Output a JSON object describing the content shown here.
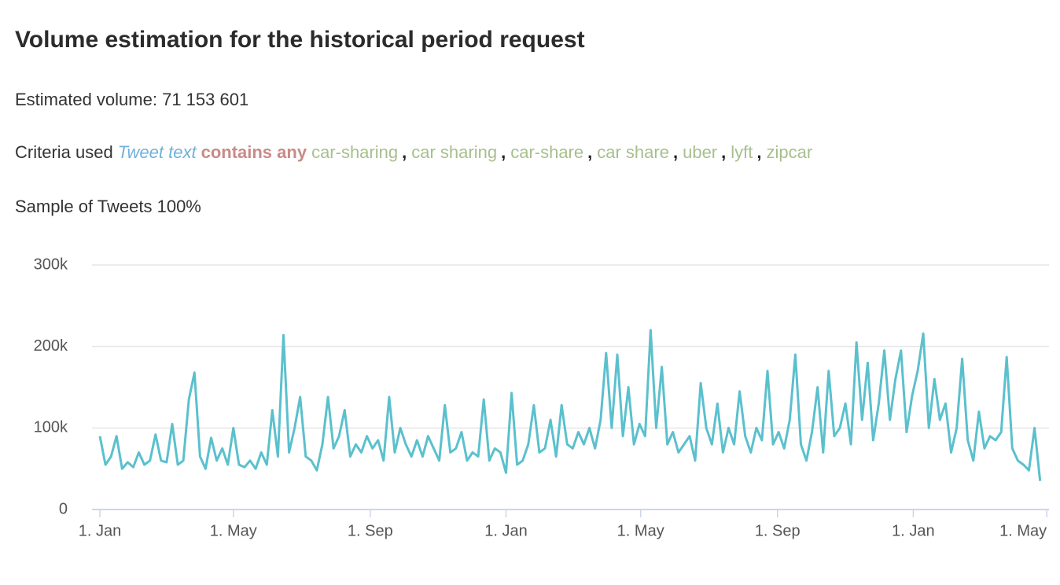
{
  "header": {
    "title": "Volume estimation for the historical period request"
  },
  "volume": {
    "label": "Estimated volume:",
    "value": "71 153 601"
  },
  "criteria": {
    "label": "Criteria used",
    "field": "Tweet text",
    "operator": "contains any",
    "terms": [
      "car-sharing",
      "car sharing",
      "car-share",
      "car share",
      "uber",
      "lyft",
      "zipcar"
    ],
    "separator": ","
  },
  "sample": {
    "label": "Sample of Tweets",
    "value": "100%"
  },
  "chart_data": {
    "type": "line",
    "color": "#5bc0cd",
    "grid": true,
    "xlim": [
      0,
      853
    ],
    "xticks": [
      {
        "value": 0,
        "label": "1. Jan"
      },
      {
        "value": 120,
        "label": "1. May"
      },
      {
        "value": 243,
        "label": "1. Sep"
      },
      {
        "value": 365,
        "label": "1. Jan"
      },
      {
        "value": 486,
        "label": "1. May"
      },
      {
        "value": 609,
        "label": "1. Sep"
      },
      {
        "value": 731,
        "label": "1. Jan"
      },
      {
        "value": 851,
        "label": "1. May"
      }
    ],
    "ylim": [
      0,
      300000
    ],
    "yticks": [
      0,
      {
        "value": 100000,
        "label": "100k"
      },
      {
        "value": 200000,
        "label": "200k"
      },
      {
        "value": 300000,
        "label": "300k"
      }
    ],
    "x": [
      0,
      5,
      10,
      15,
      20,
      25,
      30,
      35,
      40,
      45,
      50,
      55,
      60,
      65,
      70,
      75,
      80,
      85,
      90,
      95,
      100,
      105,
      110,
      115,
      120,
      125,
      130,
      135,
      140,
      145,
      150,
      155,
      160,
      165,
      170,
      175,
      180,
      185,
      190,
      195,
      200,
      205,
      210,
      215,
      220,
      225,
      230,
      235,
      240,
      245,
      250,
      255,
      260,
      265,
      270,
      275,
      280,
      285,
      290,
      295,
      300,
      305,
      310,
      315,
      320,
      325,
      330,
      335,
      340,
      345,
      350,
      355,
      360,
      365,
      370,
      375,
      380,
      385,
      390,
      395,
      400,
      405,
      410,
      415,
      420,
      425,
      430,
      435,
      440,
      445,
      450,
      455,
      460,
      465,
      470,
      475,
      480,
      485,
      490,
      495,
      500,
      505,
      510,
      515,
      520,
      525,
      530,
      535,
      540,
      545,
      550,
      555,
      560,
      565,
      570,
      575,
      580,
      585,
      590,
      595,
      600,
      605,
      610,
      615,
      620,
      625,
      630,
      635,
      640,
      645,
      650,
      655,
      660,
      665,
      670,
      675,
      680,
      685,
      690,
      695,
      700,
      705,
      710,
      715,
      720,
      725,
      730,
      735,
      740,
      745,
      750,
      755,
      760,
      765,
      770,
      775,
      780,
      785,
      790,
      795,
      800,
      805,
      810,
      815,
      820,
      825,
      830,
      835,
      840,
      845
    ],
    "values": [
      90000,
      55000,
      65000,
      90000,
      50000,
      58000,
      52000,
      70000,
      55000,
      60000,
      92000,
      60000,
      58000,
      105000,
      55000,
      60000,
      135000,
      168000,
      65000,
      50000,
      88000,
      60000,
      75000,
      55000,
      100000,
      55000,
      52000,
      60000,
      50000,
      70000,
      55000,
      122000,
      65000,
      214000,
      70000,
      100000,
      138000,
      65000,
      60000,
      48000,
      80000,
      138000,
      75000,
      90000,
      122000,
      65000,
      80000,
      70000,
      90000,
      75000,
      85000,
      60000,
      138000,
      70000,
      100000,
      80000,
      65000,
      85000,
      65000,
      90000,
      75000,
      60000,
      128000,
      70000,
      75000,
      95000,
      60000,
      70000,
      65000,
      135000,
      60000,
      75000,
      70000,
      45000,
      143000,
      55000,
      60000,
      80000,
      128000,
      70000,
      75000,
      110000,
      65000,
      128000,
      80000,
      75000,
      95000,
      80000,
      100000,
      75000,
      110000,
      192000,
      100000,
      190000,
      90000,
      150000,
      80000,
      105000,
      90000,
      220000,
      100000,
      175000,
      80000,
      95000,
      70000,
      80000,
      90000,
      60000,
      155000,
      100000,
      80000,
      130000,
      70000,
      100000,
      80000,
      145000,
      90000,
      70000,
      100000,
      85000,
      170000,
      80000,
      95000,
      75000,
      110000,
      190000,
      80000,
      60000,
      95000,
      150000,
      70000,
      170000,
      90000,
      100000,
      130000,
      80000,
      205000,
      110000,
      180000,
      85000,
      130000,
      195000,
      110000,
      160000,
      195000,
      95000,
      140000,
      170000,
      216000,
      100000,
      160000,
      110000,
      130000,
      70000,
      100000,
      185000,
      85000,
      60000,
      120000,
      75000,
      90000,
      85000,
      95000,
      187000,
      75000,
      60000,
      55000,
      48000,
      100000,
      35000
    ]
  }
}
